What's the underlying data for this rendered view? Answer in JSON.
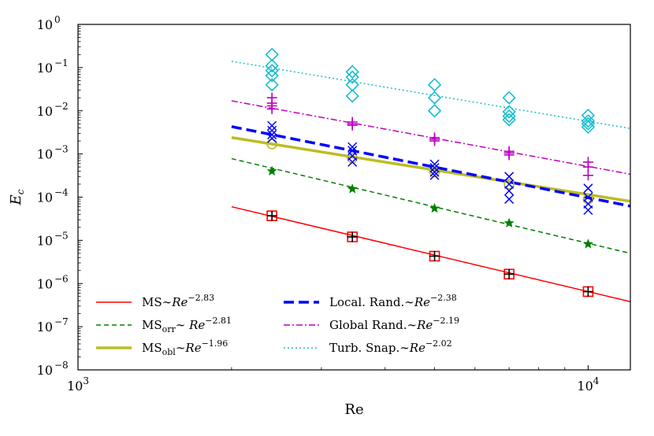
{
  "chart_data": {
    "type": "scatter",
    "xscale": "log",
    "yscale": "log",
    "xlim": [
      1000,
      12100
    ],
    "ylim_exp": [
      -8,
      0
    ],
    "xlabel": "Re",
    "ylabel": {
      "base": "E",
      "sub": "c"
    },
    "x_ticks": [
      {
        "exp": "3",
        "value": 1000
      },
      {
        "exp": "4",
        "value": 10000
      }
    ],
    "y_ticks": [
      {
        "exp": "0",
        "value": 1
      },
      {
        "exp": "−1",
        "value": 0.1
      },
      {
        "exp": "−2",
        "value": 0.01
      },
      {
        "exp": "−3",
        "value": 0.001
      },
      {
        "exp": "−4",
        "value": 0.0001
      },
      {
        "exp": "−5",
        "value": 1e-05
      },
      {
        "exp": "−6",
        "value": 1e-06
      },
      {
        "exp": "−7",
        "value": 1e-07
      },
      {
        "exp": "−8",
        "value": 1e-08
      }
    ],
    "tick_base": "10",
    "fits": [
      {
        "name": "MS",
        "exponent": "−2.83",
        "color": "#ff0000",
        "style": "solid",
        "width": 1.5,
        "x_range": [
          2000,
          12100
        ],
        "y_range": [
          6e-05,
          3.8e-07
        ]
      },
      {
        "name": "MS_orr",
        "exponent": "−2.81",
        "color": "#008000",
        "style": "dashed",
        "width": 1.5,
        "x_range": [
          2000,
          12100
        ],
        "y_range": [
          0.00078,
          5e-06
        ]
      },
      {
        "name": "MS_obl",
        "exponent": "−1.96",
        "color": "#bcbd22",
        "style": "solid",
        "width": 3.5,
        "x_range": [
          2000,
          12100
        ],
        "y_range": [
          0.0024,
          8e-05
        ]
      },
      {
        "name": "Local Rand",
        "exponent": "−2.38",
        "color": "#0000ff",
        "style": "dashed-bold",
        "width": 3.5,
        "x_range": [
          2000,
          12100
        ],
        "y_range": [
          0.0043,
          6.2e-05
        ]
      },
      {
        "name": "Global Rand",
        "exponent": "−2.19",
        "color": "#bf00bf",
        "style": "dashdot",
        "width": 1.5,
        "x_range": [
          2000,
          12100
        ],
        "y_range": [
          0.017,
          0.00034
        ]
      },
      {
        "name": "Turb Snap",
        "exponent": "−2.02",
        "color": "#17becf",
        "style": "dotted",
        "width": 1.5,
        "x_range": [
          2000,
          12100
        ],
        "y_range": [
          0.14,
          0.0039
        ]
      }
    ],
    "markers": [
      {
        "series": "MS",
        "shape": "square",
        "color": "#ff0000",
        "points": [
          [
            2400,
            3.7e-05
          ],
          [
            3450,
            1.2e-05
          ],
          [
            5000,
            4.3e-06
          ],
          [
            7000,
            1.65e-06
          ],
          [
            10000,
            6.5e-07
          ]
        ]
      },
      {
        "series": "MS",
        "shape": "plus",
        "color": "#000000",
        "points": [
          [
            2400,
            3.7e-05
          ],
          [
            3450,
            1.2e-05
          ],
          [
            5000,
            4.3e-06
          ],
          [
            7000,
            1.65e-06
          ],
          [
            10000,
            6.5e-07
          ]
        ]
      },
      {
        "series": "MS_orr",
        "shape": "star",
        "color": "#008000",
        "points": [
          [
            2400,
            0.0004
          ],
          [
            3450,
            0.000155
          ],
          [
            5000,
            5.5e-05
          ],
          [
            7000,
            2.5e-05
          ],
          [
            10000,
            8.2e-06
          ]
        ]
      },
      {
        "series": "MS_obl",
        "shape": "circle",
        "color": "#bcbd22",
        "points": [
          [
            2400,
            0.0017
          ],
          [
            3450,
            0.0008
          ],
          [
            5000,
            0.00038
          ],
          [
            7000,
            0.0002
          ],
          [
            10000,
            9e-05
          ]
        ]
      },
      {
        "series": "Local Rand",
        "shape": "x",
        "color": "#0000ff",
        "points": [
          [
            2400,
            0.0045
          ],
          [
            2400,
            0.0035
          ],
          [
            2400,
            0.0028
          ],
          [
            2400,
            0.0023
          ],
          [
            3450,
            0.00145
          ],
          [
            3450,
            0.0012
          ],
          [
            3450,
            0.0009
          ],
          [
            3450,
            0.00065
          ],
          [
            5000,
            0.00058
          ],
          [
            5000,
            0.00048
          ],
          [
            5000,
            0.00038
          ],
          [
            5000,
            0.00032
          ],
          [
            7000,
            0.0003
          ],
          [
            7000,
            0.0002
          ],
          [
            7000,
            0.00014
          ],
          [
            7000,
            9e-05
          ],
          [
            10000,
            0.00016
          ],
          [
            10000,
            0.0001
          ],
          [
            10000,
            7e-05
          ],
          [
            10000,
            5e-05
          ]
        ]
      },
      {
        "series": "Global Rand",
        "shape": "plus",
        "color": "#bf00bf",
        "points": [
          [
            2400,
            0.02
          ],
          [
            2400,
            0.015
          ],
          [
            2400,
            0.013
          ],
          [
            2400,
            0.011
          ],
          [
            3450,
            0.0055
          ],
          [
            3450,
            0.005
          ],
          [
            3450,
            0.0046
          ],
          [
            5000,
            0.0024
          ],
          [
            5000,
            0.0022
          ],
          [
            5000,
            0.002
          ],
          [
            7000,
            0.00115
          ],
          [
            7000,
            0.00105
          ],
          [
            7000,
            0.00095
          ],
          [
            10000,
            0.00065
          ],
          [
            10000,
            0.0005
          ],
          [
            10000,
            0.00032
          ]
        ]
      },
      {
        "series": "Turb Snap",
        "shape": "diamond",
        "color": "#17becf",
        "points": [
          [
            2400,
            0.2
          ],
          [
            2400,
            0.11
          ],
          [
            2400,
            0.085
          ],
          [
            2400,
            0.065
          ],
          [
            2400,
            0.04
          ],
          [
            3450,
            0.08
          ],
          [
            3450,
            0.06
          ],
          [
            3450,
            0.04
          ],
          [
            3450,
            0.022
          ],
          [
            5000,
            0.04
          ],
          [
            5000,
            0.02
          ],
          [
            5000,
            0.01
          ],
          [
            7000,
            0.02
          ],
          [
            7000,
            0.0095
          ],
          [
            7000,
            0.0075
          ],
          [
            7000,
            0.0062
          ],
          [
            10000,
            0.0078
          ],
          [
            10000,
            0.0058
          ],
          [
            10000,
            0.005
          ],
          [
            10000,
            0.0042
          ]
        ]
      }
    ],
    "legend": {
      "position": "lower-left",
      "entries": [
        {
          "label": "MS∼",
          "sub": "",
          "label2": "",
          "re": "Re",
          "exp": "−2.83",
          "color": "#ff0000",
          "style": "solid",
          "width": 1.5
        },
        {
          "label": "MS",
          "sub": "orr",
          "label2": "∼ ",
          "re": "Re",
          "exp": "−2.81",
          "color": "#008000",
          "style": "dashed",
          "width": 1.5
        },
        {
          "label": "MS",
          "sub": "obl",
          "label2": "∼",
          "re": "Re",
          "exp": "−1.96",
          "color": "#bcbd22",
          "style": "solid",
          "width": 3.5
        },
        {
          "label": "Local. Rand.∼",
          "sub": "",
          "label2": "",
          "re": "Re",
          "exp": "−2.38",
          "color": "#0000ff",
          "style": "dashed-bold",
          "width": 3.5
        },
        {
          "label": "Global Rand.∼",
          "sub": "",
          "label2": "",
          "re": "Re",
          "exp": "−2.19",
          "color": "#bf00bf",
          "style": "dashdot",
          "width": 1.5
        },
        {
          "label": "Turb. Snap.∼",
          "sub": "",
          "label2": "",
          "re": "Re",
          "exp": "−2.02",
          "color": "#17becf",
          "style": "dotted",
          "width": 1.5
        }
      ]
    }
  }
}
